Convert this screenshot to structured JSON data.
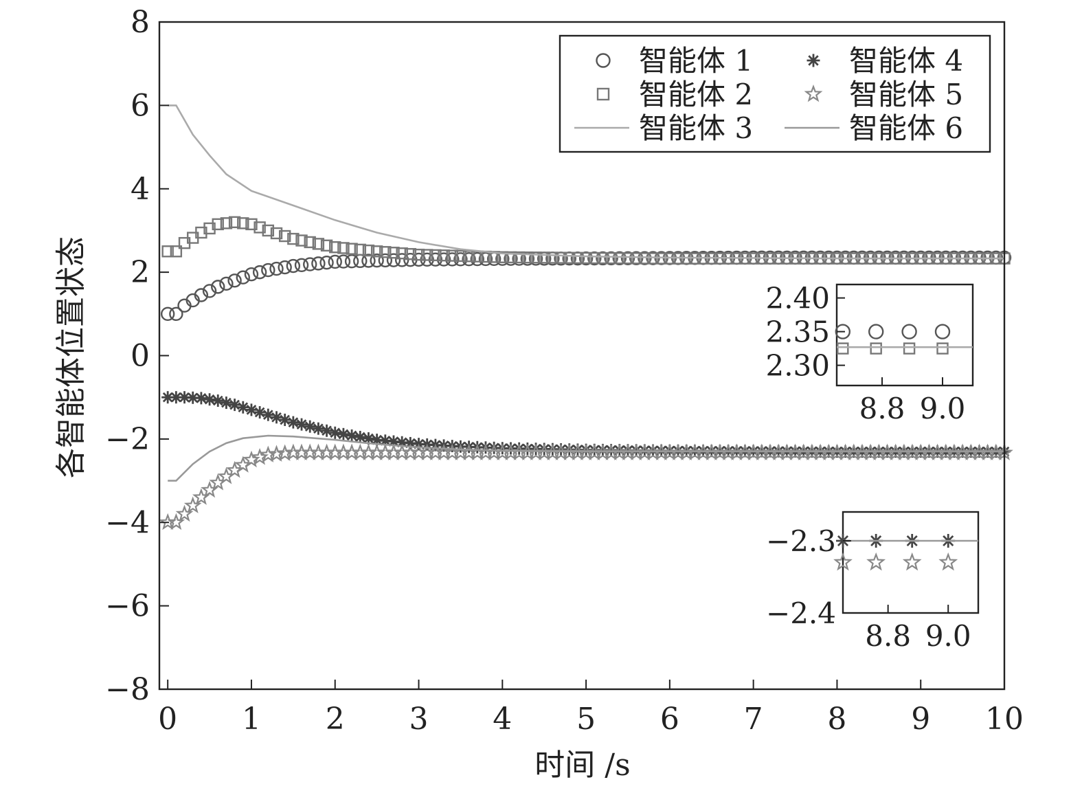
{
  "chart_data": {
    "type": "line",
    "xlabel": "时间 /s",
    "ylabel": "各智能体位置状态",
    "xlim": [
      -0.1,
      10
    ],
    "ylim": [
      -8,
      8
    ],
    "xticks": [
      0,
      1,
      2,
      3,
      4,
      5,
      6,
      7,
      8,
      9,
      10
    ],
    "yticks": [
      8,
      6,
      4,
      2,
      0,
      -2,
      -4,
      -6,
      -8
    ],
    "ytick_labels": [
      "8",
      "6",
      "4",
      "2",
      "0",
      "−2",
      "−4",
      "−6",
      "−8"
    ],
    "grid": false,
    "legend_position": "top-right",
    "series": [
      {
        "name": "智能体 1",
        "marker": "circle",
        "color": "#555555",
        "x": [
          0,
          0.1,
          0.2,
          0.4,
          0.6,
          0.8,
          1.0,
          1.2,
          1.5,
          2.0,
          2.5,
          3.0,
          4.0,
          5.0,
          6.0,
          7.0,
          8.0,
          9.0,
          10.0
        ],
        "y": [
          1.0,
          1.0,
          1.2,
          1.45,
          1.65,
          1.8,
          1.95,
          2.05,
          2.15,
          2.25,
          2.28,
          2.3,
          2.32,
          2.33,
          2.34,
          2.35,
          2.35,
          2.35,
          2.35
        ]
      },
      {
        "name": "智能体 2",
        "marker": "square",
        "color": "#777777",
        "x": [
          0,
          0.1,
          0.2,
          0.4,
          0.6,
          0.8,
          1.0,
          1.2,
          1.5,
          2.0,
          2.5,
          3.0,
          4.0,
          5.0,
          6.0,
          7.0,
          8.0,
          9.0,
          10.0
        ],
        "y": [
          2.5,
          2.5,
          2.7,
          2.95,
          3.15,
          3.2,
          3.15,
          3.0,
          2.8,
          2.6,
          2.5,
          2.42,
          2.36,
          2.34,
          2.33,
          2.33,
          2.33,
          2.33,
          2.33
        ]
      },
      {
        "name": "智能体 3",
        "marker": "none",
        "color": "#aaaaaa",
        "x": [
          0,
          0.1,
          0.3,
          0.5,
          0.7,
          1.0,
          1.5,
          2.0,
          2.5,
          3.0,
          3.5,
          4.0,
          5.0,
          6.0,
          7.0,
          8.0,
          9.0,
          10.0
        ],
        "y": [
          6.0,
          6.0,
          5.3,
          4.8,
          4.35,
          3.95,
          3.6,
          3.25,
          2.95,
          2.72,
          2.55,
          2.45,
          2.38,
          2.35,
          2.34,
          2.33,
          2.33,
          2.33
        ]
      },
      {
        "name": "智能体 4",
        "marker": "asterisk",
        "color": "#444444",
        "x": [
          0,
          0.2,
          0.4,
          0.6,
          0.8,
          1.0,
          1.2,
          1.5,
          2.0,
          2.5,
          3.0,
          3.5,
          4.0,
          5.0,
          6.0,
          7.0,
          8.0,
          9.0,
          10.0
        ],
        "y": [
          -1.0,
          -1.0,
          -1.02,
          -1.08,
          -1.18,
          -1.3,
          -1.42,
          -1.6,
          -1.85,
          -2.02,
          -2.12,
          -2.18,
          -2.22,
          -2.26,
          -2.28,
          -2.29,
          -2.3,
          -2.3,
          -2.3
        ]
      },
      {
        "name": "智能体 5",
        "marker": "star",
        "color": "#888888",
        "x": [
          0,
          0.1,
          0.2,
          0.4,
          0.6,
          0.8,
          1.0,
          1.2,
          1.5,
          2.0,
          2.5,
          3.0,
          4.0,
          5.0,
          6.0,
          7.0,
          8.0,
          9.0,
          10.0
        ],
        "y": [
          -4.0,
          -4.0,
          -3.8,
          -3.4,
          -3.05,
          -2.75,
          -2.5,
          -2.38,
          -2.33,
          -2.33,
          -2.33,
          -2.33,
          -2.33,
          -2.33,
          -2.33,
          -2.33,
          -2.33,
          -2.33,
          -2.33
        ]
      },
      {
        "name": "智能体 6",
        "marker": "none",
        "color": "#999999",
        "x": [
          0,
          0.1,
          0.3,
          0.5,
          0.7,
          0.9,
          1.2,
          1.5,
          2.0,
          2.5,
          3.0,
          3.5,
          4.0,
          5.0,
          6.0,
          7.0,
          8.0,
          9.0,
          10.0
        ],
        "y": [
          -3.0,
          -3.0,
          -2.6,
          -2.3,
          -2.1,
          -1.98,
          -1.92,
          -1.94,
          -2.02,
          -2.12,
          -2.2,
          -2.25,
          -2.28,
          -2.3,
          -2.3,
          -2.3,
          -2.3,
          -2.3,
          -2.3
        ]
      }
    ],
    "insets": [
      {
        "location": "right-upper",
        "xlim": [
          8.65,
          9.1
        ],
        "ylim": [
          2.27,
          2.42
        ],
        "xticks": [
          8.8,
          9.0
        ],
        "xtick_labels": [
          "8.8",
          "9.0"
        ],
        "yticks": [
          2.4,
          2.35,
          2.3
        ],
        "ytick_labels": [
          "2.40",
          "2.35",
          "2.30"
        ],
        "marker_x": [
          8.67,
          8.78,
          8.89,
          9.0
        ],
        "series": [
          {
            "ref": "智能体 1",
            "y": 2.35
          },
          {
            "ref": "智能体 2",
            "y": 2.325
          },
          {
            "ref": "智能体 3",
            "y": 2.327
          }
        ]
      },
      {
        "location": "right-lower",
        "xlim": [
          8.65,
          9.1
        ],
        "ylim": [
          -2.4,
          -2.26
        ],
        "xticks": [
          8.8,
          9.0
        ],
        "xtick_labels": [
          "8.8",
          "9.0"
        ],
        "yticks": [
          -2.3,
          -2.4
        ],
        "ytick_labels": [
          "−2.3",
          "−2.4"
        ],
        "marker_x": [
          8.65,
          8.76,
          8.88,
          9.0
        ],
        "series": [
          {
            "ref": "智能体 4",
            "y": -2.3
          },
          {
            "ref": "智能体 6",
            "y": -2.3
          },
          {
            "ref": "智能体 5",
            "y": -2.33
          }
        ]
      }
    ]
  }
}
